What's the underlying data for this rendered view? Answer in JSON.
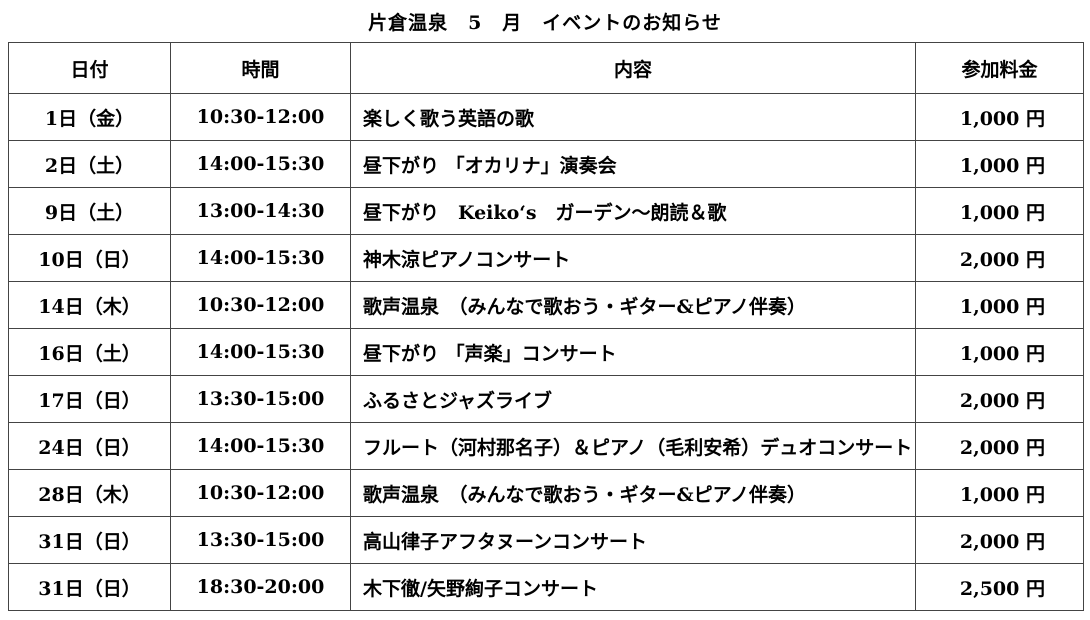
{
  "title": "片倉温泉　5　月　イベントのお知らせ",
  "headers": {
    "date": "日付",
    "time": "時間",
    "content": "内容",
    "fee": "参加料金"
  },
  "rows": [
    {
      "date": "1日（金）",
      "time": "10:30-12:00",
      "content": "楽しく歌う英語の歌",
      "fee": "1,000 円"
    },
    {
      "date": "2日（土）",
      "time": "14:00-15:30",
      "content": "昼下がり 「オカリナ」演奏会",
      "fee": "1,000 円"
    },
    {
      "date": "9日（土）",
      "time": "13:00-14:30",
      "content": "昼下がり　Keiko‘s　ガーデン～朗読＆歌",
      "fee": "1,000 円"
    },
    {
      "date": "10日（日）",
      "time": "14:00-15:30",
      "content": "神木涼ピアノコンサート",
      "fee": "2,000 円"
    },
    {
      "date": "14日（木）",
      "time": "10:30-12:00",
      "content": "歌声温泉　（みんなで歌おう・ギター&ピアノ伴奏）",
      "fee": "1,000 円"
    },
    {
      "date": "16日（土）",
      "time": "14:00-15:30",
      "content": "昼下がり 「声楽」コンサート",
      "fee": "1,000 円"
    },
    {
      "date": "17日（日）",
      "time": "13:30-15:00",
      "content": "ふるさとジャズライブ",
      "fee": "2,000 円"
    },
    {
      "date": "24日（日）",
      "time": "14:00-15:30",
      "content": "フルート（河村那名子）＆ピアノ（毛利安希）デュオコンサート",
      "fee": "2,000 円"
    },
    {
      "date": "28日（木）",
      "time": "10:30-12:00",
      "content": "歌声温泉　（みんなで歌おう・ギター&ピアノ伴奏）",
      "fee": "1,000 円"
    },
    {
      "date": "31日（日）",
      "time": "13:30-15:00",
      "content": "高山律子アフタヌーンコンサート",
      "fee": "2,000 円"
    },
    {
      "date": "31日（日）",
      "time": "18:30-20:00",
      "content": "木下徹/矢野絢子コンサート",
      "fee": "2,500 円"
    }
  ]
}
